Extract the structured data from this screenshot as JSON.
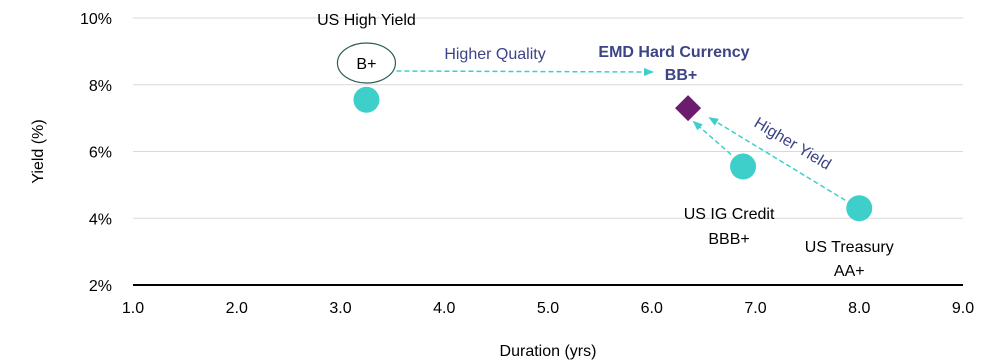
{
  "chart_data": {
    "type": "scatter",
    "xlabel": "Duration (yrs)",
    "ylabel": "Yield (%)",
    "xlim": [
      1.0,
      9.0
    ],
    "ylim": [
      2,
      10
    ],
    "x_ticks": [
      "1.0",
      "2.0",
      "3.0",
      "4.0",
      "5.0",
      "6.0",
      "7.0",
      "8.0",
      "9.0"
    ],
    "y_ticks": [
      "2%",
      "4%",
      "6%",
      "8%",
      "10%"
    ],
    "grid": "horizontal",
    "points": [
      {
        "name": "US High Yield",
        "rating": "B+",
        "x": 3.25,
        "y": 7.55,
        "marker": "circle"
      },
      {
        "name": "US IG Credit",
        "rating": "BBB+",
        "x": 6.88,
        "y": 5.55,
        "marker": "circle"
      },
      {
        "name": "US Treasury",
        "rating": "AA+",
        "x": 8.0,
        "y": 4.3,
        "marker": "circle"
      },
      {
        "name": "EMD Hard Currency",
        "rating": "BB+",
        "x": 6.35,
        "y": 7.3,
        "marker": "diamond"
      }
    ],
    "annotations": [
      {
        "text": "Higher Quality",
        "from": "US High Yield",
        "to": "EMD Hard Currency"
      },
      {
        "text": "Higher Yield",
        "from": "US Treasury",
        "to": "EMD Hard Currency"
      }
    ],
    "colors": {
      "circle": "#3ECFCB",
      "diamond": "#6B1C6E",
      "arrow": "#3ECFCB",
      "annotation_text": "#3C4485",
      "emd_text": "#3C4485",
      "grid": "#D9D9D9",
      "axis": "#000000"
    }
  }
}
